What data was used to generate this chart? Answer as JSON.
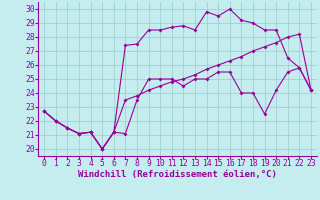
{
  "xlabel": "Windchill (Refroidissement éolien,°C)",
  "bg_color": "#c5ecee",
  "line_color": "#990099",
  "grid_color": "#99cccc",
  "xlim_min": -0.5,
  "xlim_max": 23.5,
  "ylim_min": 19.5,
  "ylim_max": 30.5,
  "xticks": [
    0,
    1,
    2,
    3,
    4,
    5,
    6,
    7,
    8,
    9,
    10,
    11,
    12,
    13,
    14,
    15,
    16,
    17,
    18,
    19,
    20,
    21,
    22,
    23
  ],
  "yticks": [
    20,
    21,
    22,
    23,
    24,
    25,
    26,
    27,
    28,
    29,
    30
  ],
  "line1_x": [
    0,
    1,
    2,
    3,
    4,
    5,
    6,
    7,
    8,
    9,
    10,
    11,
    12,
    13,
    14,
    15,
    16,
    17,
    18,
    19,
    20,
    21,
    22,
    23
  ],
  "line1_y": [
    22.7,
    22.0,
    21.5,
    21.1,
    21.2,
    20.0,
    21.2,
    21.1,
    23.5,
    25.0,
    25.0,
    25.0,
    24.5,
    25.0,
    25.0,
    25.5,
    25.5,
    24.0,
    24.0,
    22.5,
    24.2,
    25.5,
    25.8,
    24.2
  ],
  "line2_x": [
    0,
    1,
    2,
    3,
    4,
    5,
    6,
    7,
    8,
    9,
    10,
    11,
    12,
    13,
    14,
    15,
    16,
    17,
    18,
    19,
    20,
    21,
    22,
    23
  ],
  "line2_y": [
    22.7,
    22.0,
    21.5,
    21.1,
    21.2,
    20.0,
    21.2,
    27.4,
    27.5,
    28.5,
    28.5,
    28.7,
    28.8,
    28.5,
    29.8,
    29.5,
    30.0,
    29.2,
    29.0,
    28.5,
    28.5,
    26.5,
    25.8,
    24.2
  ],
  "line3_x": [
    0,
    1,
    2,
    3,
    4,
    5,
    6,
    7,
    8,
    9,
    10,
    11,
    12,
    13,
    14,
    15,
    16,
    17,
    18,
    19,
    20,
    21,
    22,
    23
  ],
  "line3_y": [
    22.7,
    22.0,
    21.5,
    21.1,
    21.2,
    20.0,
    21.2,
    23.5,
    23.8,
    24.2,
    24.5,
    24.8,
    25.0,
    25.3,
    25.7,
    26.0,
    26.3,
    26.6,
    27.0,
    27.3,
    27.6,
    28.0,
    28.2,
    24.2
  ],
  "xlabel_fontsize": 6.5,
  "tick_fontsize": 5.8
}
